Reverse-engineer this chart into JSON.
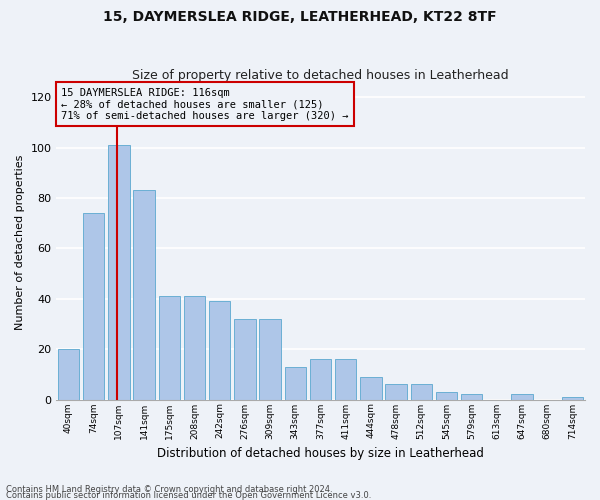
{
  "title1": "15, DAYMERSLEA RIDGE, LEATHERHEAD, KT22 8TF",
  "title2": "Size of property relative to detached houses in Leatherhead",
  "xlabel": "Distribution of detached houses by size in Leatherhead",
  "ylabel": "Number of detached properties",
  "categories": [
    "40sqm",
    "74sqm",
    "107sqm",
    "141sqm",
    "175sqm",
    "208sqm",
    "242sqm",
    "276sqm",
    "309sqm",
    "343sqm",
    "377sqm",
    "411sqm",
    "444sqm",
    "478sqm",
    "512sqm",
    "545sqm",
    "579sqm",
    "613sqm",
    "647sqm",
    "680sqm",
    "714sqm"
  ],
  "values": [
    20,
    74,
    101,
    83,
    41,
    41,
    39,
    32,
    32,
    13,
    16,
    16,
    9,
    6,
    6,
    3,
    2,
    0,
    2,
    0,
    1
  ],
  "bar_color": "#aec6e8",
  "bar_edge_color": "#6aafd4",
  "highlight_color": "#cc0000",
  "annotation_box_text": "15 DAYMERSLEA RIDGE: 116sqm\n← 28% of detached houses are smaller (125)\n71% of semi-detached houses are larger (320) →",
  "ylim": [
    0,
    125
  ],
  "yticks": [
    0,
    20,
    40,
    60,
    80,
    100,
    120
  ],
  "footer1": "Contains HM Land Registry data © Crown copyright and database right 2024.",
  "footer2": "Contains public sector information licensed under the Open Government Licence v3.0.",
  "bg_color": "#eef2f8",
  "grid_color": "#ffffff",
  "red_line_xindex": 2
}
